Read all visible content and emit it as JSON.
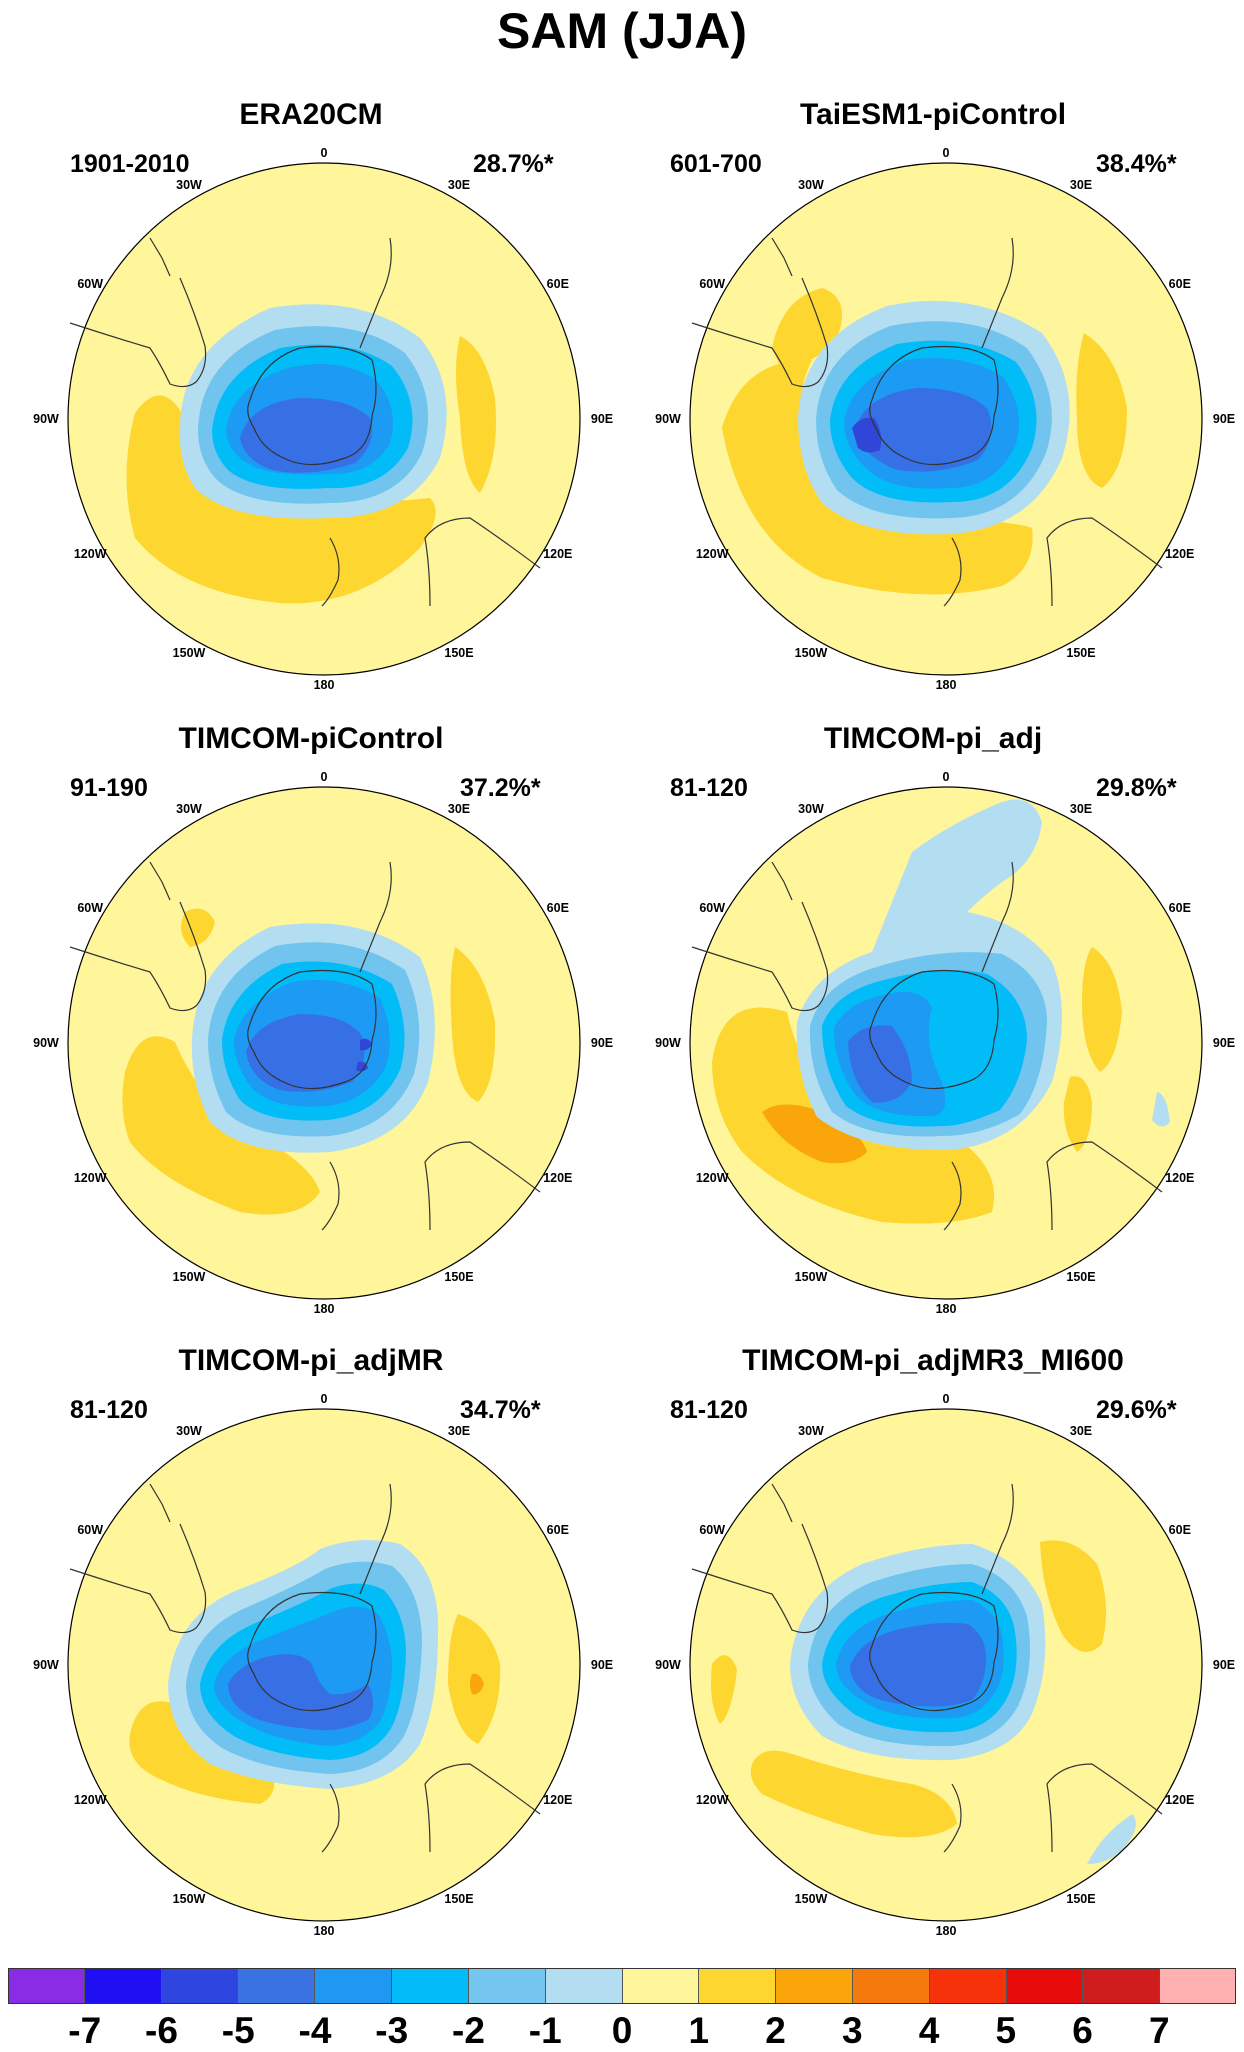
{
  "figure": {
    "title": "SAM (JJA)"
  },
  "colors": {
    "sea": "#FFF59A",
    "coast": "#333333",
    "pos1": "#FDD630",
    "pos2": "#FAA60A",
    "neg1": "#B3DEF2",
    "neg2": "#70C4EE",
    "neg3": "#02BCF8",
    "neg4": "#1D9AF3",
    "neg5": "#376FE5",
    "neg6": "#3046D7"
  },
  "longitude_labels": {
    "top": "0",
    "r30": "30E",
    "r60": "60E",
    "r90": "90E",
    "r120": "120E",
    "r150": "150E",
    "bottom": "180",
    "l150": "150W",
    "l120": "120W",
    "l90": "90W",
    "l60": "60W",
    "l30": "30W"
  },
  "panels": [
    {
      "title": "ERA20CM",
      "period": "1901-2010",
      "variance": "28.7%*"
    },
    {
      "title": "TaiESM1-piControl",
      "period": "601-700",
      "variance": "38.4%*"
    },
    {
      "title": "TIMCOM-piControl",
      "period": "91-190",
      "variance": "37.2%*"
    },
    {
      "title": "TIMCOM-pi_adj",
      "period": "81-120",
      "variance": "29.8%*"
    },
    {
      "title": "TIMCOM-pi_adjMR",
      "period": "81-120",
      "variance": "34.7%*"
    },
    {
      "title": "TIMCOM-pi_adjMR3_MI600",
      "period": "81-120",
      "variance": "29.6%*"
    }
  ],
  "colorbar": {
    "levels": [
      "-7",
      "-6",
      "-5",
      "-4",
      "-3",
      "-2",
      "-1",
      "0",
      "1",
      "2",
      "3",
      "4",
      "5",
      "6",
      "7"
    ],
    "colors": [
      "#8A2BE6",
      "#1F10F3",
      "#2E45E0",
      "#3A72E4",
      "#1E98F2",
      "#02BCF8",
      "#74C6EE",
      "#B3DEF2",
      "#FFF59A",
      "#FDD630",
      "#FAA60A",
      "#F57A0E",
      "#F5320A",
      "#E60C0C",
      "#CF1C1C",
      "#FFB1B1"
    ]
  }
}
